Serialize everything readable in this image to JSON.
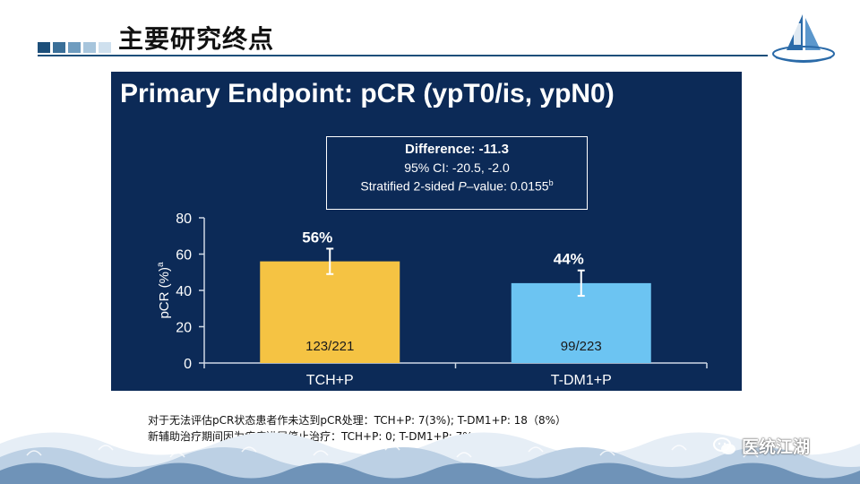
{
  "slide": {
    "title": "主要研究终点",
    "square_colors": [
      "#1d4f7a",
      "#3a6f98",
      "#6f9cbf",
      "#a7c5dc",
      "#cfe0ee"
    ]
  },
  "panel": {
    "title": "Primary Endpoint: pCR (ypT0/is, ypN0)",
    "difference": "Difference: -11.3",
    "ci": "95% CI: -20.5, -2.0",
    "pvalue_prefix": "Stratified 2-sided ",
    "pvalue_p": "P",
    "pvalue_suffix": "–value: 0.0155",
    "pvalue_sup": "b"
  },
  "chart_data": {
    "type": "bar",
    "categories": [
      "TCH+P",
      "T-DM1+P"
    ],
    "values": [
      56,
      44
    ],
    "data_labels": [
      "56%",
      "44%"
    ],
    "counts": [
      "123/221",
      "99/223"
    ],
    "ci_low": [
      49,
      37
    ],
    "ci_high": [
      63,
      51
    ],
    "colors": [
      "#f5c343",
      "#6cc4f2"
    ],
    "ylabel": "pCR (%)",
    "ylabel_sup": "a",
    "ylim": [
      0,
      80
    ],
    "yticks": [
      0,
      20,
      40,
      60,
      80
    ],
    "xlabel": "",
    "title": ""
  },
  "footnotes": [
    "对于无法评估pCR状态患者作未达到pCR处理：TCH+P: 7(3%); T-DM1+P: 18（8%）",
    "新辅助治疗期间因为疾病进展停止治疗：TCH+P: 0; T-DM1+P: 7%"
  ],
  "watermark": {
    "text": "医统江湖",
    "icon": "wechat-icon"
  }
}
